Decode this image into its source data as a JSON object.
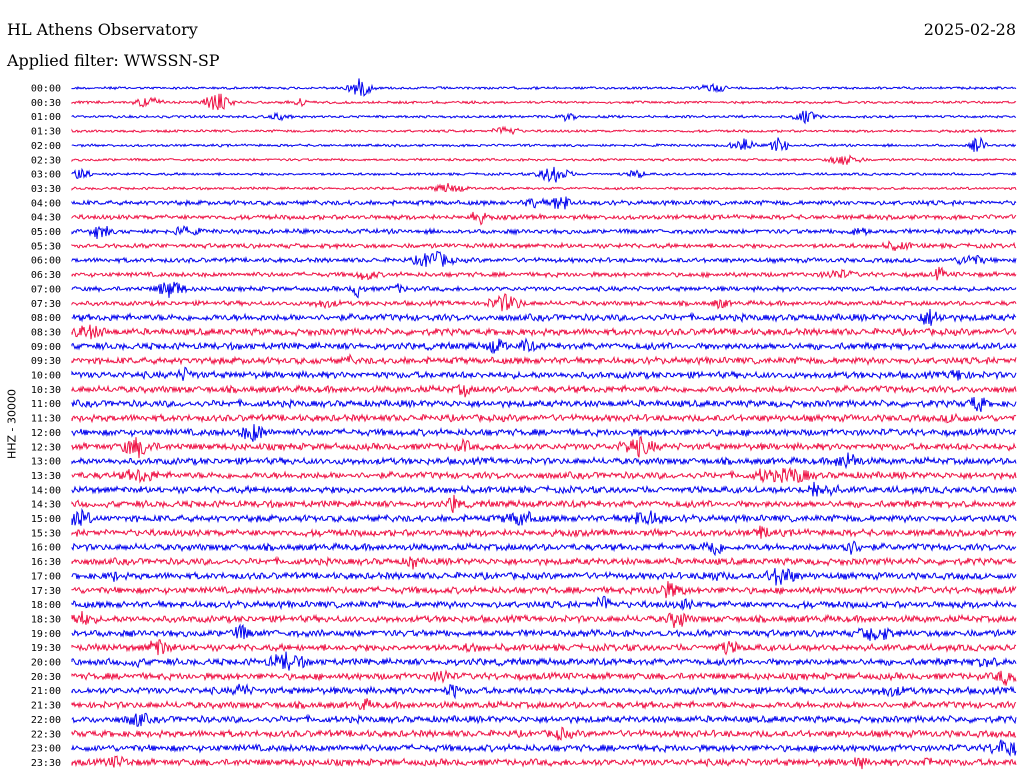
{
  "header": {
    "station": "HL Athens Observatory",
    "filter": "Applied filter: WWSSN-SP",
    "date": "2025-02-28",
    "channel": "HHZ - 30000"
  },
  "chart_data": {
    "type": "line",
    "title": "HL Athens Observatory",
    "subtitle": "Applied filter: WWSSN-SP",
    "date": "2025-02-28",
    "ylabel": "HHZ - 30000",
    "row_labels": [
      "00:00",
      "00:30",
      "01:00",
      "01:30",
      "02:00",
      "02:30",
      "03:00",
      "03:30",
      "04:00",
      "04:30",
      "05:00",
      "05:30",
      "06:00",
      "06:30",
      "07:00",
      "07:30",
      "08:00",
      "08:30",
      "09:00",
      "09:30",
      "10:00",
      "10:30",
      "11:00",
      "11:30",
      "12:00",
      "12:30",
      "13:00",
      "13:30",
      "14:00",
      "14:30",
      "15:00",
      "15:30",
      "16:00",
      "16:30",
      "17:00",
      "17:30",
      "18:00",
      "18:30",
      "19:00",
      "19:30",
      "20:00",
      "20:30",
      "21:00",
      "21:30",
      "22:00",
      "22:30",
      "23:00",
      "23:30"
    ],
    "colors": [
      "#0000ee",
      "#ee1144"
    ],
    "grid": false,
    "legend": "none"
  }
}
